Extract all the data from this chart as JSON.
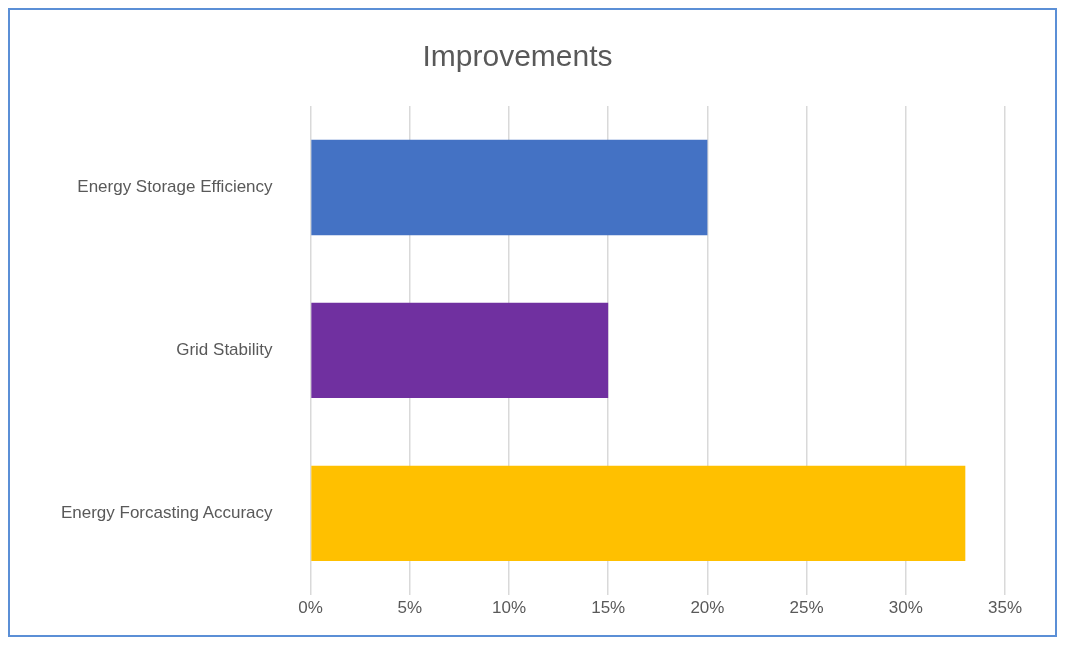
{
  "chart_data": {
    "type": "bar",
    "title": "Improvements",
    "orientation": "horizontal",
    "categories": [
      "Energy Storage Efficiency",
      "Grid Stability",
      "Energy Forcasting Accuracy"
    ],
    "values": [
      20,
      15,
      33
    ],
    "colors": [
      "#4472c4",
      "#7030a0",
      "#ffc000"
    ],
    "xlim": [
      0,
      35
    ],
    "xticks": [
      {
        "value": 0,
        "label": "0%"
      },
      {
        "value": 5,
        "label": "5%"
      },
      {
        "value": 10,
        "label": "10%"
      },
      {
        "value": 15,
        "label": "15%"
      },
      {
        "value": 20,
        "label": "20%"
      },
      {
        "value": 25,
        "label": "25%"
      },
      {
        "value": 30,
        "label": "30%"
      },
      {
        "value": 35,
        "label": "35%"
      }
    ],
    "grid": "x",
    "legend": false
  }
}
